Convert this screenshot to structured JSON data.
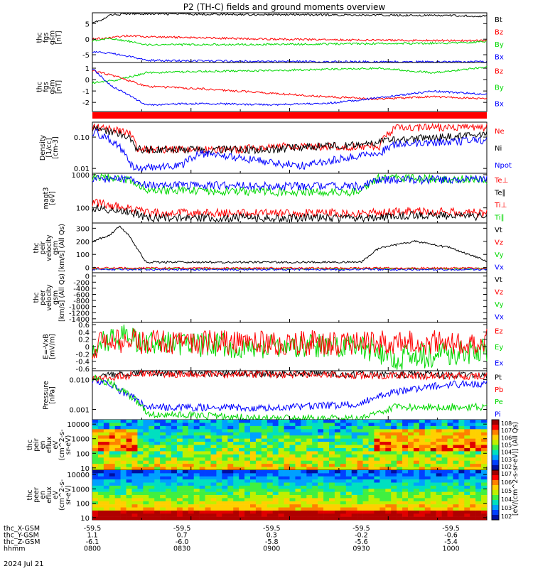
{
  "title": "P2 (TH-C) fields and ground moments overview",
  "date_label": "2024 Jul 21",
  "colors": {
    "black": "#000000",
    "red": "#ff0000",
    "green": "#00d800",
    "blue": "#0000ff",
    "bar": "#ff0000"
  },
  "chart_data": [
    {
      "id": "fgs",
      "type": "line",
      "ylabel": [
        "thc",
        "fgs",
        "gsm",
        "[nT]"
      ],
      "yscale": "linear",
      "ylim": [
        -7.5,
        8.5
      ],
      "ticks": [
        {
          "v": 5,
          "t": "5"
        },
        {
          "v": 0,
          "t": "0"
        },
        {
          "v": -5,
          "t": "-5"
        }
      ],
      "legend": [
        {
          "t": "Bt",
          "c": "black"
        },
        {
          "t": "Bz",
          "c": "red"
        },
        {
          "t": "By",
          "c": "green"
        },
        {
          "t": "Bx",
          "c": "blue"
        }
      ],
      "series": [
        {
          "c": "black",
          "x": [
            0,
            0.05,
            0.1,
            0.2,
            1,
            1.4,
            2,
            2.2
          ],
          "y": [
            5.5,
            6,
            7.8,
            8.2,
            7.9,
            7.8,
            7.6,
            7.4
          ]
        },
        {
          "c": "red",
          "x": [
            0,
            0.1,
            0.2,
            0.3,
            1,
            1.5,
            2.2
          ],
          "y": [
            0,
            0.5,
            1.2,
            0.8,
            0,
            -0.3,
            -0.5
          ]
        },
        {
          "c": "green",
          "x": [
            0,
            0.1,
            0.25,
            0.3,
            1,
            2,
            2.2
          ],
          "y": [
            -0.5,
            0.2,
            -1,
            -1.8,
            -1.7,
            -1.2,
            -0.8
          ]
        },
        {
          "c": "blue",
          "x": [
            0,
            0.1,
            0.2,
            0.3,
            1,
            2,
            2.2
          ],
          "y": [
            -4,
            -4.5,
            -5.5,
            -6.8,
            -7.2,
            -7.3,
            -7.2
          ]
        }
      ]
    },
    {
      "id": "fgs_gse",
      "type": "line",
      "ylabel": [
        "thc",
        "fgs",
        "gsm",
        "[nT]"
      ],
      "yscale": "linear",
      "ylim": [
        -2.8,
        1.5
      ],
      "ticks": [
        {
          "v": 1,
          "t": "1"
        },
        {
          "v": 0,
          "t": "0"
        },
        {
          "v": -1,
          "t": "-1"
        },
        {
          "v": -2,
          "t": "-2"
        }
      ],
      "legend": [
        {
          "t": "Bz",
          "c": "red"
        },
        {
          "t": "By",
          "c": "green"
        },
        {
          "t": "Bx",
          "c": "blue"
        }
      ],
      "series": [
        {
          "c": "green",
          "x": [
            0,
            0.15,
            0.3,
            0.6,
            1,
            1.3,
            1.6,
            1.9,
            2.2
          ],
          "y": [
            -0.3,
            0,
            0.6,
            0.7,
            0.8,
            0.9,
            1.0,
            0.6,
            1.1
          ]
        },
        {
          "c": "red",
          "x": [
            0,
            0.15,
            0.3,
            0.6,
            1,
            1.3,
            1.6,
            1.9,
            2.2
          ],
          "y": [
            0.8,
            0.2,
            -0.6,
            -0.8,
            -1.2,
            -1.5,
            -1.7,
            -1.5,
            -1.7
          ]
        },
        {
          "c": "blue",
          "x": [
            0,
            0.1,
            0.3,
            0.6,
            1,
            1.3,
            1.6,
            1.9,
            2.2
          ],
          "y": [
            1,
            -0.5,
            -2.2,
            -2.1,
            -2.2,
            -2.1,
            -1.6,
            -1.0,
            -1.3
          ]
        }
      ]
    },
    {
      "id": "density",
      "type": "line",
      "ylabel": [
        "Density",
        "[1/cc]",
        "[cm-3]"
      ],
      "yscale": "log",
      "ylim": [
        0.007,
        0.3
      ],
      "ticks": [
        {
          "v": 0.1,
          "t": "0.10"
        },
        {
          "v": 0.01,
          "t": "0.01"
        }
      ],
      "legend": [
        {
          "t": "Ne",
          "c": "red"
        },
        {
          "t": "Ni",
          "c": "black"
        },
        {
          "t": "Npot",
          "c": "blue"
        }
      ],
      "series": [
        {
          "c": "red",
          "x": [
            0,
            0.2,
            0.25,
            0.8,
            1,
            1.4,
            1.6,
            1.7,
            2.2
          ],
          "y": [
            0.2,
            0.15,
            0.04,
            0.04,
            0.05,
            0.05,
            0.05,
            0.2,
            0.2
          ]
        },
        {
          "c": "black",
          "x": [
            0,
            0.2,
            0.25,
            1,
            1.5,
            1.7,
            2.2
          ],
          "y": [
            0.2,
            0.1,
            0.04,
            0.04,
            0.06,
            0.08,
            0.12
          ]
        },
        {
          "c": "blue",
          "x": [
            0,
            0.1,
            0.2,
            0.25,
            0.5,
            0.6,
            1,
            1.2,
            1.6,
            1.7,
            2.2
          ],
          "y": [
            0.15,
            0.08,
            0.015,
            0.01,
            0.012,
            0.03,
            0.015,
            0.012,
            0.03,
            0.06,
            0.08
          ]
        }
      ]
    },
    {
      "id": "temps",
      "type": "line",
      "ylabel": [
        "magt3",
        "[eV]"
      ],
      "yscale": "log",
      "ylim": [
        35,
        1100
      ],
      "ticks": [
        {
          "v": 1000,
          "t": "1000"
        },
        {
          "v": 100,
          "t": "100"
        }
      ],
      "legend": [
        {
          "t": "Te⊥",
          "c": "red"
        },
        {
          "t": "Te∥",
          "c": "black"
        },
        {
          "t": "Ti⊥",
          "c": "red"
        },
        {
          "t": "Ti∥",
          "c": "green"
        }
      ],
      "series": [
        {
          "c": "green",
          "x": [
            0,
            0.2,
            0.3,
            1,
            1.5,
            1.6,
            2.2
          ],
          "y": [
            900,
            700,
            350,
            300,
            300,
            800,
            700
          ]
        },
        {
          "c": "blue",
          "x": [
            0,
            0.2,
            0.3,
            1,
            1.5,
            1.6,
            2.2
          ],
          "y": [
            800,
            700,
            500,
            450,
            450,
            700,
            700
          ]
        },
        {
          "c": "red",
          "x": [
            0,
            0.2,
            0.3,
            1,
            1.5,
            1.8,
            2.2
          ],
          "y": [
            150,
            100,
            70,
            70,
            70,
            80,
            70
          ]
        },
        {
          "c": "black",
          "x": [
            0,
            0.2,
            0.3,
            1,
            1.5,
            1.8,
            2.2
          ],
          "y": [
            100,
            80,
            50,
            50,
            50,
            60,
            55
          ]
        }
      ]
    },
    {
      "id": "vel_peir",
      "type": "line",
      "ylabel": [
        "thc",
        "peir",
        "velocity",
        "gsm",
        "[km/s] (All Qs)"
      ],
      "yscale": "linear",
      "ylim": [
        -40,
        340
      ],
      "ticks": [
        {
          "v": 300,
          "t": "300"
        },
        {
          "v": 200,
          "t": "200"
        },
        {
          "v": 100,
          "t": "100"
        },
        {
          "v": 0,
          "t": "0"
        }
      ],
      "legend": [
        {
          "t": "Vt",
          "c": "black"
        },
        {
          "t": "Vz",
          "c": "red"
        },
        {
          "t": "Vy",
          "c": "green"
        },
        {
          "t": "Vx",
          "c": "blue"
        }
      ],
      "series": [
        {
          "c": "black",
          "x": [
            0,
            0.1,
            0.15,
            0.2,
            0.3,
            1,
            1.5,
            1.6,
            1.8,
            2,
            2.2
          ],
          "y": [
            200,
            250,
            320,
            250,
            40,
            40,
            40,
            150,
            200,
            150,
            50
          ]
        },
        {
          "c": "green",
          "x": [
            0,
            2.2
          ],
          "y": [
            -10,
            -10
          ]
        },
        {
          "c": "blue",
          "x": [
            0,
            2.2
          ],
          "y": [
            -15,
            -15
          ]
        },
        {
          "c": "red",
          "x": [
            0,
            2.2
          ],
          "y": [
            -5,
            -5
          ]
        }
      ]
    },
    {
      "id": "vel_peer",
      "type": "line",
      "ylabel": [
        "thc",
        "peer",
        "velocity",
        "gsm",
        "[km/s] (All Qs)"
      ],
      "yscale": "linear",
      "ylim": [
        -1520,
        110
      ],
      "ticks": [
        {
          "v": 0,
          "t": "0"
        },
        {
          "v": -200,
          "t": "-200"
        },
        {
          "v": -400,
          "t": "-400"
        },
        {
          "v": -600,
          "t": "-600"
        },
        {
          "v": -800,
          "t": "-800"
        },
        {
          "v": -1000,
          "t": "-1000"
        },
        {
          "v": -1200,
          "t": "-1200"
        },
        {
          "v": -1400,
          "t": "-1400"
        }
      ],
      "legend": [
        {
          "t": "Vt",
          "c": "black"
        },
        {
          "t": "Vz",
          "c": "red"
        },
        {
          "t": "Vy",
          "c": "green"
        },
        {
          "t": "Vx",
          "c": "blue"
        }
      ],
      "series": []
    },
    {
      "id": "efield",
      "type": "line",
      "ylabel": [
        "E=-VxB",
        "[mV/m]"
      ],
      "yscale": "linear",
      "ylim": [
        -0.66,
        0.66
      ],
      "ticks": [
        {
          "v": 0.6,
          "t": "0.6"
        },
        {
          "v": 0.4,
          "t": "0.4"
        },
        {
          "v": 0.2,
          "t": "0.2"
        },
        {
          "v": 0,
          "t": "0"
        },
        {
          "v": -0.2,
          "t": "-0.2"
        },
        {
          "v": -0.4,
          "t": "-0.4"
        },
        {
          "v": -0.6,
          "t": "-0.6"
        }
      ],
      "legend": [
        {
          "t": "Ez",
          "c": "red"
        },
        {
          "t": "Ey",
          "c": "green"
        },
        {
          "t": "Ex",
          "c": "blue"
        }
      ],
      "series": [
        {
          "c": "green",
          "x": [
            0,
            0.2,
            0.3,
            1,
            1.5,
            1.7,
            2,
            2.2
          ],
          "y": [
            0,
            0.3,
            0.1,
            0,
            0,
            -0.3,
            -0.2,
            -0.1
          ]
        },
        {
          "c": "red",
          "x": [
            0,
            0.2,
            0.3,
            1,
            1.5,
            2,
            2.2
          ],
          "y": [
            0,
            0.2,
            0.1,
            0.1,
            0.1,
            0.1,
            0.15
          ]
        }
      ]
    },
    {
      "id": "pressure",
      "type": "line",
      "ylabel": [
        "Pressure",
        "[nPa]"
      ],
      "yscale": "log",
      "ylim": [
        0.00045,
        0.02
      ],
      "ticks": [
        {
          "v": 0.01,
          "t": "0.010"
        },
        {
          "v": 0.001,
          "t": "0.001"
        }
      ],
      "legend": [
        {
          "t": "Pt",
          "c": "black"
        },
        {
          "t": "Pb",
          "c": "red"
        },
        {
          "t": "Pe",
          "c": "green"
        },
        {
          "t": "Pi",
          "c": "blue"
        }
      ],
      "series": [
        {
          "c": "black",
          "x": [
            0,
            0.2,
            0.3,
            1,
            2.2
          ],
          "y": [
            0.013,
            0.016,
            0.017,
            0.016,
            0.014
          ]
        },
        {
          "c": "red",
          "x": [
            0,
            0.2,
            0.3,
            1,
            2.2
          ],
          "y": [
            0.01,
            0.014,
            0.016,
            0.015,
            0.013
          ]
        },
        {
          "c": "blue",
          "x": [
            0,
            0.1,
            0.2,
            0.3,
            1,
            1.5,
            1.7,
            2,
            2.2
          ],
          "y": [
            0.01,
            0.006,
            0.003,
            0.0012,
            0.0011,
            0.0015,
            0.004,
            0.007,
            0.007
          ]
        },
        {
          "c": "green",
          "x": [
            0,
            0.2,
            0.3,
            1,
            1.5,
            1.7,
            2.2
          ],
          "y": [
            0.012,
            0.003,
            0.0007,
            0.0005,
            0.0005,
            0.0012,
            0.0012
          ]
        }
      ]
    },
    {
      "id": "peir_en",
      "type": "heatmap",
      "ylabel": [
        "thc",
        "peir",
        "en",
        "eflux",
        "eV",
        "(cm^2-s-",
        "sr-eV)"
      ],
      "yscale": "log",
      "ylim": [
        7,
        20000
      ],
      "ticks": [
        {
          "v": 10000,
          "t": "10000"
        },
        {
          "v": 1000,
          "t": "1000"
        },
        {
          "v": 100,
          "t": "100"
        },
        {
          "v": 10,
          "t": "10"
        }
      ]
    },
    {
      "id": "peer_en",
      "type": "heatmap",
      "ylabel": [
        "thc",
        "peer",
        "en",
        "eflux",
        "eV",
        "(cm^2-s-",
        "sr-eV)"
      ],
      "yscale": "log",
      "ylim": [
        7,
        20000
      ],
      "ticks": [
        {
          "v": 10000,
          "t": "10000"
        },
        {
          "v": 1000,
          "t": "1000"
        },
        {
          "v": 100,
          "t": "100"
        },
        {
          "v": 10,
          "t": "10"
        }
      ]
    }
  ],
  "colorbar": {
    "label": "[eV/(cm^2-s-sr-eV)] (All Qs)",
    "ticks_top": [
      "10^8",
      "10^7",
      "10^6",
      "10^5",
      "10^4",
      "10^3",
      "10^2"
    ],
    "ticks_bottom": [
      "10^7",
      "10^6",
      "10^5",
      "10^4",
      "10^3",
      "10^2"
    ]
  },
  "xaxis": {
    "ticks": [
      {
        "x": 0,
        "time": "0800",
        "X": "-59.5",
        "Y": "1.1",
        "Z": "-6.1"
      },
      {
        "x": 0.5,
        "time": "0830",
        "X": "-59.5",
        "Y": "0.7",
        "Z": "-6.0"
      },
      {
        "x": 1,
        "time": "0900",
        "X": "-59.5",
        "Y": "0.3",
        "Z": "-5.8"
      },
      {
        "x": 1.5,
        "time": "0930",
        "X": "-59.5",
        "Y": "-0.2",
        "Z": "-5.6"
      },
      {
        "x": 2,
        "time": "1000",
        "X": "-59.5",
        "Y": "-0.6",
        "Z": "-5.4"
      }
    ],
    "rows": [
      "thc_X-GSM",
      "thc_Y-GSM",
      "thc_Z-GSM",
      "hhmm"
    ]
  }
}
